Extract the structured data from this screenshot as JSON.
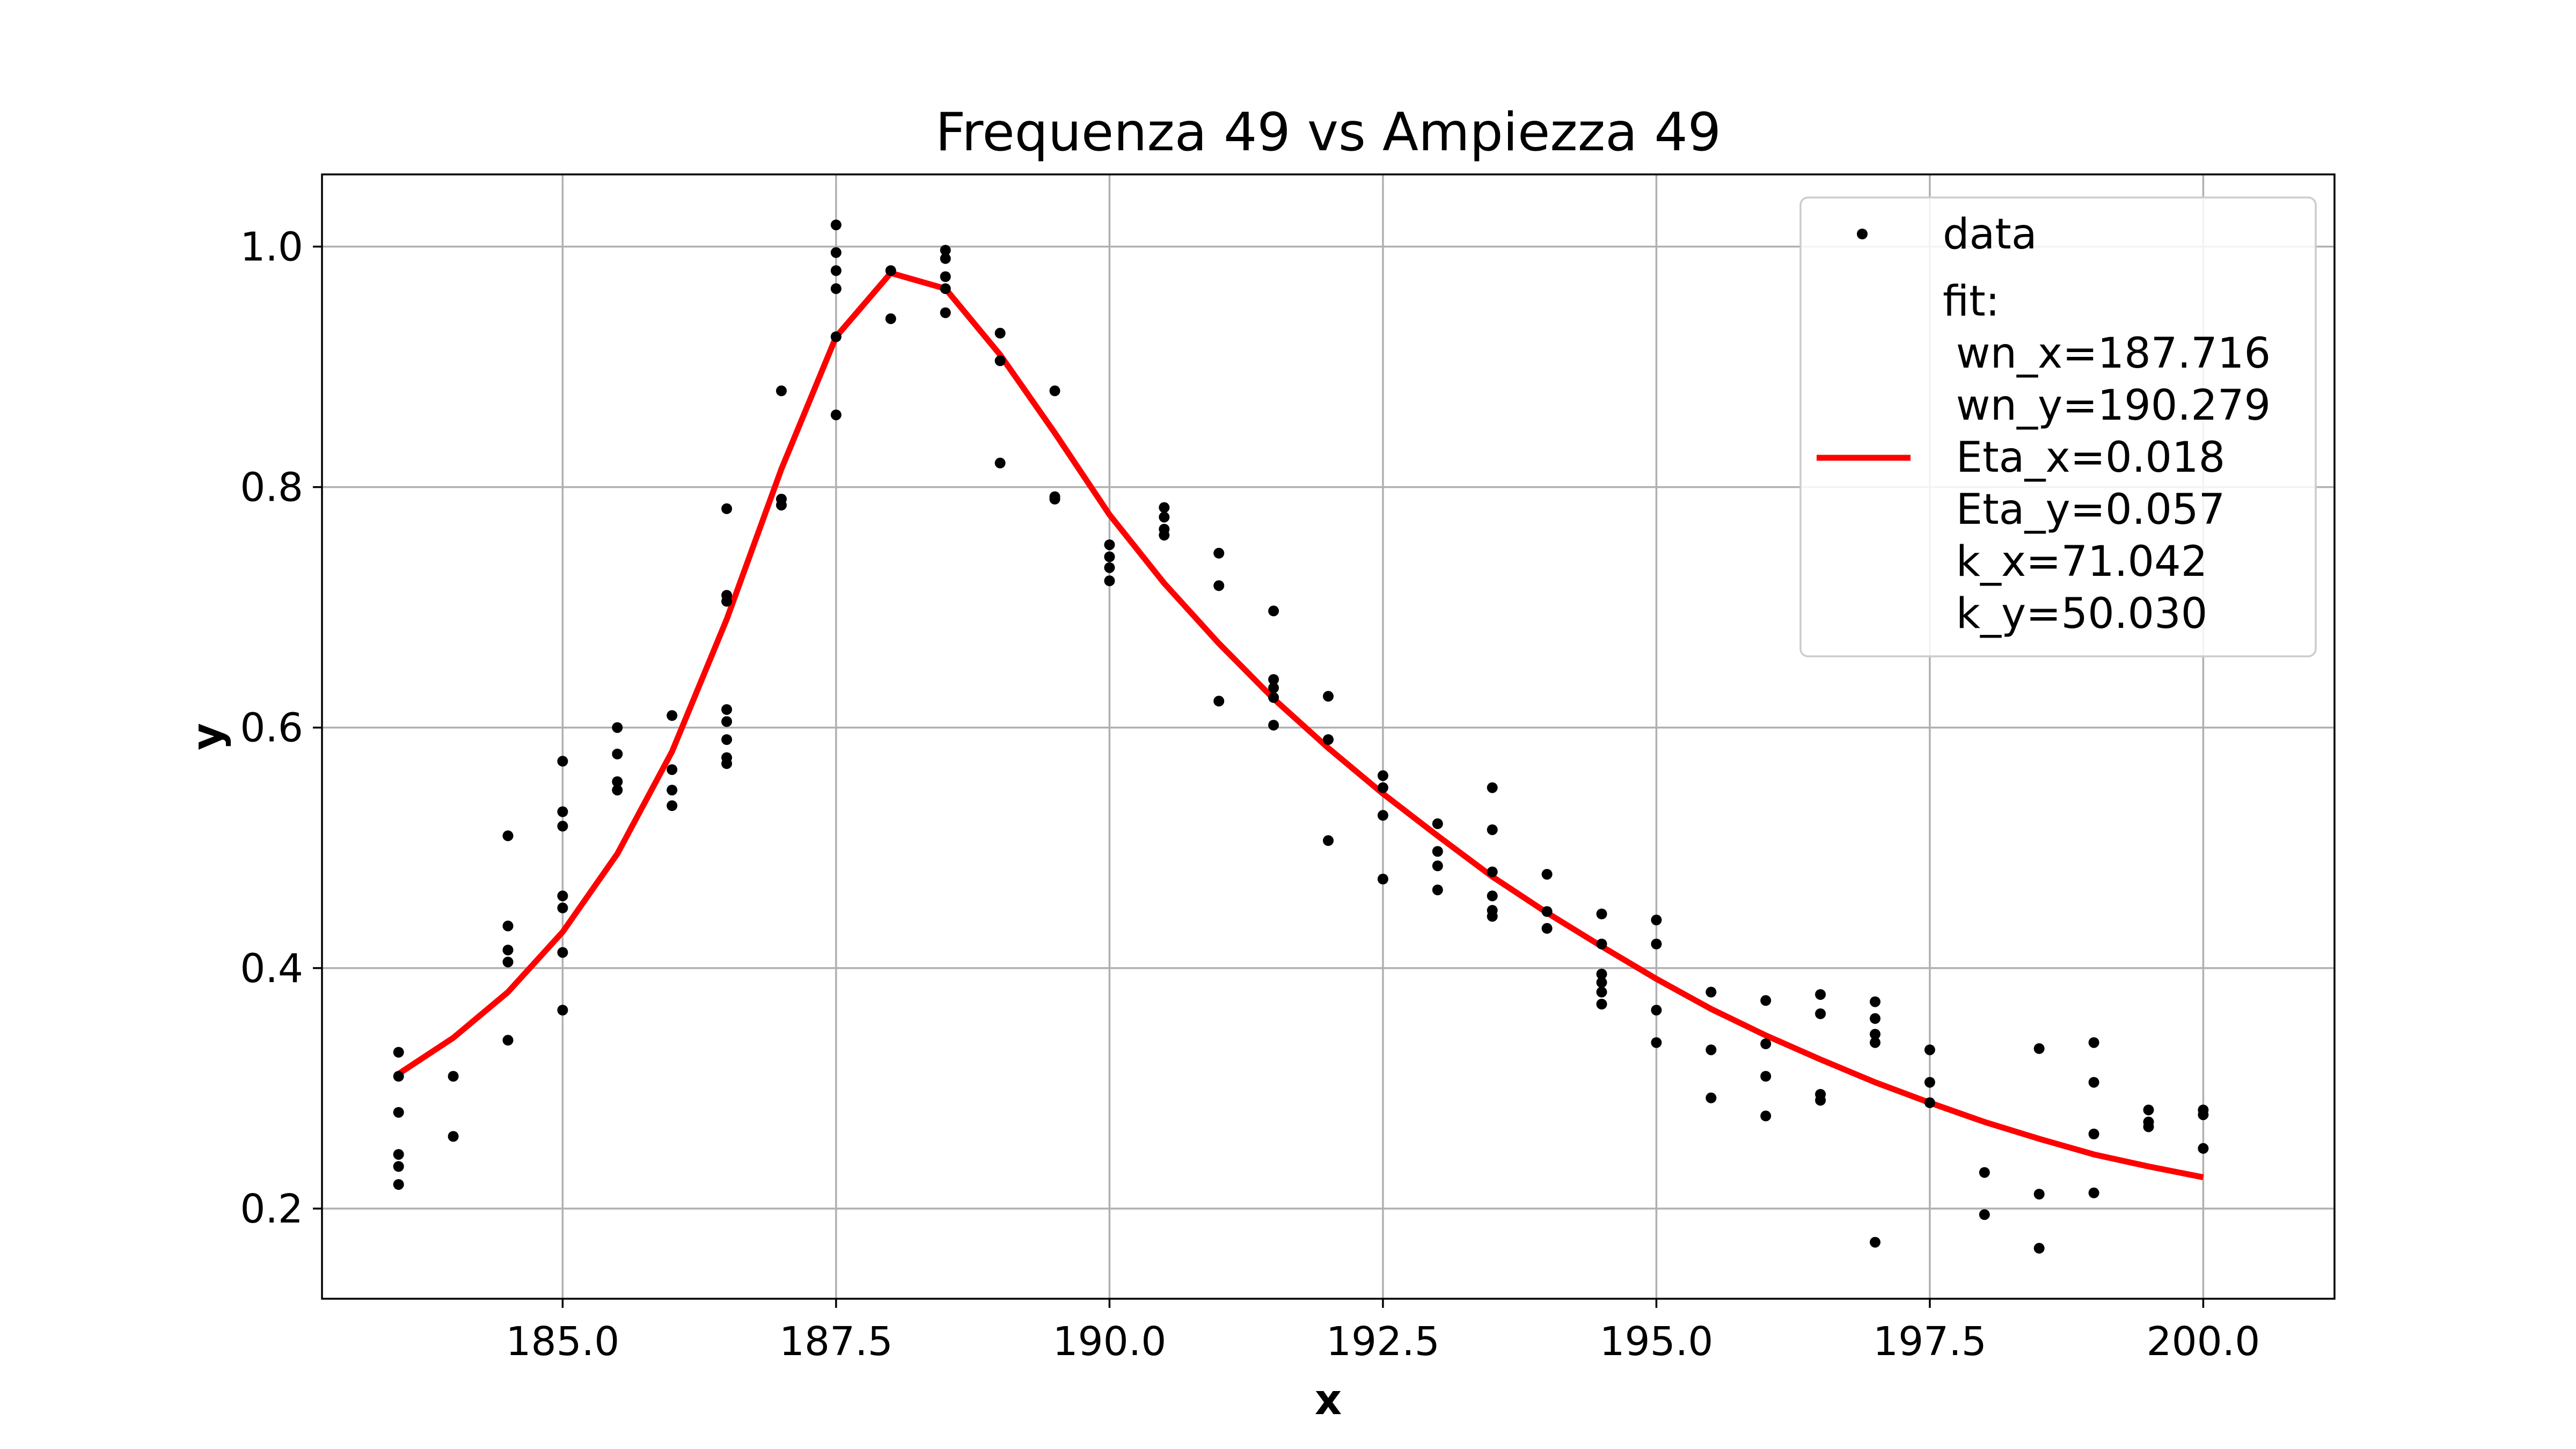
{
  "chart_data": {
    "type": "scatter",
    "title": "Frequenza 49 vs Ampiezza 49",
    "xlabel": "x",
    "ylabel": "y",
    "xlim": [
      182.8,
      201.2
    ],
    "ylim": [
      0.125,
      1.06
    ],
    "x_ticks": [
      185.0,
      187.5,
      190.0,
      192.5,
      195.0,
      197.5,
      200.0
    ],
    "x_tick_labels": [
      "185.0",
      "187.5",
      "190.0",
      "192.5",
      "195.0",
      "197.5",
      "200.0"
    ],
    "y_ticks": [
      0.2,
      0.4,
      0.6,
      0.8,
      1.0
    ],
    "y_tick_labels": [
      "0.2",
      "0.4",
      "0.6",
      "0.8",
      "1.0"
    ],
    "grid": true,
    "legend_position": "top-right",
    "series": [
      {
        "name": "data",
        "kind": "scatter",
        "color": "#000000",
        "points": [
          [
            183.5,
            0.33
          ],
          [
            183.5,
            0.31
          ],
          [
            183.5,
            0.28
          ],
          [
            183.5,
            0.245
          ],
          [
            183.5,
            0.235
          ],
          [
            183.5,
            0.22
          ],
          [
            184.0,
            0.31
          ],
          [
            184.0,
            0.26
          ],
          [
            184.5,
            0.51
          ],
          [
            184.5,
            0.435
          ],
          [
            184.5,
            0.415
          ],
          [
            184.5,
            0.405
          ],
          [
            184.5,
            0.34
          ],
          [
            185.0,
            0.572
          ],
          [
            185.0,
            0.53
          ],
          [
            185.0,
            0.518
          ],
          [
            185.0,
            0.46
          ],
          [
            185.0,
            0.45
          ],
          [
            185.0,
            0.413
          ],
          [
            185.0,
            0.365
          ],
          [
            185.5,
            0.6
          ],
          [
            185.5,
            0.578
          ],
          [
            185.5,
            0.555
          ],
          [
            185.5,
            0.548
          ],
          [
            186.0,
            0.61
          ],
          [
            186.0,
            0.565
          ],
          [
            186.0,
            0.548
          ],
          [
            186.0,
            0.535
          ],
          [
            186.5,
            0.782
          ],
          [
            186.5,
            0.71
          ],
          [
            186.5,
            0.705
          ],
          [
            186.5,
            0.615
          ],
          [
            186.5,
            0.605
          ],
          [
            186.5,
            0.59
          ],
          [
            186.5,
            0.575
          ],
          [
            186.5,
            0.57
          ],
          [
            187.0,
            0.88
          ],
          [
            187.0,
            0.79
          ],
          [
            187.0,
            0.785
          ],
          [
            187.5,
            1.018
          ],
          [
            187.5,
            0.995
          ],
          [
            187.5,
            0.98
          ],
          [
            187.5,
            0.965
          ],
          [
            187.5,
            0.925
          ],
          [
            187.5,
            0.86
          ],
          [
            188.0,
            0.98
          ],
          [
            188.0,
            0.94
          ],
          [
            188.5,
            0.997
          ],
          [
            188.5,
            0.99
          ],
          [
            188.5,
            0.975
          ],
          [
            188.5,
            0.965
          ],
          [
            188.5,
            0.945
          ],
          [
            189.0,
            0.928
          ],
          [
            189.0,
            0.905
          ],
          [
            189.0,
            0.82
          ],
          [
            189.5,
            0.88
          ],
          [
            189.5,
            0.792
          ],
          [
            189.5,
            0.79
          ],
          [
            190.0,
            0.752
          ],
          [
            190.0,
            0.742
          ],
          [
            190.0,
            0.733
          ],
          [
            190.0,
            0.722
          ],
          [
            190.5,
            0.783
          ],
          [
            190.5,
            0.775
          ],
          [
            190.5,
            0.765
          ],
          [
            190.5,
            0.76
          ],
          [
            191.0,
            0.745
          ],
          [
            191.0,
            0.718
          ],
          [
            191.0,
            0.622
          ],
          [
            191.5,
            0.697
          ],
          [
            191.5,
            0.64
          ],
          [
            191.5,
            0.633
          ],
          [
            191.5,
            0.625
          ],
          [
            191.5,
            0.602
          ],
          [
            192.0,
            0.626
          ],
          [
            192.0,
            0.59
          ],
          [
            192.0,
            0.506
          ],
          [
            192.5,
            0.56
          ],
          [
            192.5,
            0.55
          ],
          [
            192.5,
            0.527
          ],
          [
            192.5,
            0.474
          ],
          [
            193.0,
            0.52
          ],
          [
            193.0,
            0.497
          ],
          [
            193.0,
            0.485
          ],
          [
            193.0,
            0.465
          ],
          [
            193.5,
            0.55
          ],
          [
            193.5,
            0.515
          ],
          [
            193.5,
            0.48
          ],
          [
            193.5,
            0.46
          ],
          [
            193.5,
            0.448
          ],
          [
            193.5,
            0.443
          ],
          [
            194.0,
            0.478
          ],
          [
            194.0,
            0.447
          ],
          [
            194.0,
            0.433
          ],
          [
            194.5,
            0.445
          ],
          [
            194.5,
            0.42
          ],
          [
            194.5,
            0.395
          ],
          [
            194.5,
            0.388
          ],
          [
            194.5,
            0.38
          ],
          [
            194.5,
            0.37
          ],
          [
            195.0,
            0.44
          ],
          [
            195.0,
            0.42
          ],
          [
            195.0,
            0.365
          ],
          [
            195.0,
            0.338
          ],
          [
            195.5,
            0.38
          ],
          [
            195.5,
            0.332
          ],
          [
            195.5,
            0.292
          ],
          [
            196.0,
            0.373
          ],
          [
            196.0,
            0.337
          ],
          [
            196.0,
            0.31
          ],
          [
            196.0,
            0.277
          ],
          [
            196.5,
            0.378
          ],
          [
            196.5,
            0.362
          ],
          [
            196.5,
            0.295
          ],
          [
            196.5,
            0.29
          ],
          [
            197.0,
            0.372
          ],
          [
            197.0,
            0.358
          ],
          [
            197.0,
            0.345
          ],
          [
            197.0,
            0.338
          ],
          [
            197.0,
            0.172
          ],
          [
            197.5,
            0.332
          ],
          [
            197.5,
            0.305
          ],
          [
            197.5,
            0.288
          ],
          [
            198.0,
            0.23
          ],
          [
            198.0,
            0.195
          ],
          [
            198.5,
            0.333
          ],
          [
            198.5,
            0.212
          ],
          [
            198.5,
            0.167
          ],
          [
            199.0,
            0.338
          ],
          [
            199.0,
            0.305
          ],
          [
            199.0,
            0.262
          ],
          [
            199.0,
            0.213
          ],
          [
            199.5,
            0.282
          ],
          [
            199.5,
            0.272
          ],
          [
            199.5,
            0.268
          ],
          [
            200.0,
            0.282
          ],
          [
            200.0,
            0.278
          ],
          [
            200.0,
            0.25
          ]
        ]
      },
      {
        "name": "fit:\n wn_x=187.716\n wn_y=190.279\n Eta_x=0.018\n Eta_y=0.057\n k_x=71.042\n k_y=50.030",
        "kind": "line",
        "color": "#ff0000",
        "points": [
          [
            183.5,
            0.312
          ],
          [
            184.0,
            0.342
          ],
          [
            184.5,
            0.38
          ],
          [
            185.0,
            0.43
          ],
          [
            185.5,
            0.495
          ],
          [
            186.0,
            0.58
          ],
          [
            186.5,
            0.69
          ],
          [
            187.0,
            0.815
          ],
          [
            187.5,
            0.925
          ],
          [
            188.0,
            0.978
          ],
          [
            188.5,
            0.965
          ],
          [
            189.0,
            0.91
          ],
          [
            189.5,
            0.845
          ],
          [
            190.0,
            0.777
          ],
          [
            190.5,
            0.72
          ],
          [
            191.0,
            0.67
          ],
          [
            191.5,
            0.624
          ],
          [
            192.0,
            0.583
          ],
          [
            192.5,
            0.545
          ],
          [
            193.0,
            0.51
          ],
          [
            193.5,
            0.476
          ],
          [
            194.0,
            0.446
          ],
          [
            194.5,
            0.418
          ],
          [
            195.0,
            0.391
          ],
          [
            195.5,
            0.366
          ],
          [
            196.0,
            0.344
          ],
          [
            196.5,
            0.324
          ],
          [
            197.0,
            0.305
          ],
          [
            197.5,
            0.288
          ],
          [
            198.0,
            0.272
          ],
          [
            198.5,
            0.258
          ],
          [
            199.0,
            0.245
          ],
          [
            199.5,
            0.235
          ],
          [
            200.0,
            0.226
          ]
        ]
      }
    ],
    "legend": {
      "entries": [
        {
          "label": "data",
          "marker": "point"
        },
        {
          "label_lines": [
            "fit:",
            " wn_x=187.716",
            " wn_y=190.279",
            " Eta_x=0.018",
            " Eta_y=0.057",
            " k_x=71.042",
            " k_y=50.030"
          ],
          "marker": "line"
        }
      ]
    }
  }
}
